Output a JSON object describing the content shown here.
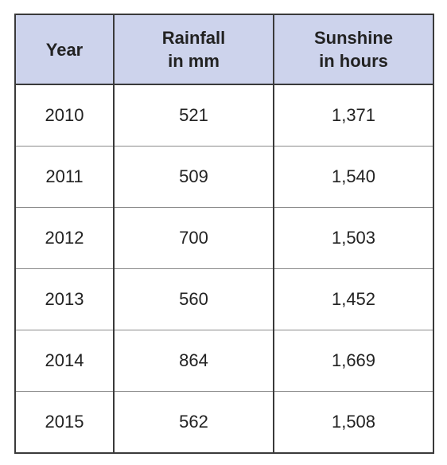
{
  "table": {
    "headers": [
      [
        "Year"
      ],
      [
        "Rainfall",
        "in mm"
      ],
      [
        "Sunshine",
        "in hours"
      ]
    ],
    "rows": [
      [
        "2010",
        "521",
        "1,371"
      ],
      [
        "2011",
        "509",
        "1,540"
      ],
      [
        "2012",
        "700",
        "1,503"
      ],
      [
        "2013",
        "560",
        "1,452"
      ],
      [
        "2014",
        "864",
        "1,669"
      ],
      [
        "2015",
        "562",
        "1,508"
      ]
    ]
  }
}
